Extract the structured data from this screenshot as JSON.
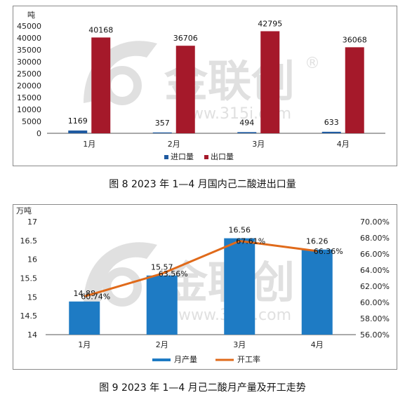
{
  "watermark": {
    "brand": "金联创",
    "url": "www.315i.com",
    "registered": "®",
    "color": "#c8c8c8"
  },
  "colors": {
    "import": "#1f5aa0",
    "export": "#a5192a",
    "production": "#1e7bc4",
    "utilization": "#e06a1a",
    "axis": "#555555"
  },
  "chart_data": [
    {
      "type": "bar",
      "unit_label": "吨",
      "categories": [
        "1月",
        "2月",
        "3月",
        "4月"
      ],
      "series": [
        {
          "name": "进口量",
          "values": [
            1169,
            357,
            494,
            633
          ]
        },
        {
          "name": "出口量",
          "values": [
            40168,
            36706,
            42795,
            36068
          ]
        }
      ],
      "ylim": [
        0,
        45000
      ],
      "yticks": [
        0,
        5000,
        10000,
        15000,
        20000,
        25000,
        30000,
        35000,
        40000,
        45000
      ],
      "legend": "bottom",
      "grid": false,
      "caption": "图 8  2023 年 1—4 月国内己二酸进出口量"
    },
    {
      "type": "bar+line",
      "unit_label": "万吨",
      "categories": [
        "1月",
        "2月",
        "3月",
        "4月"
      ],
      "bar_series": {
        "name": "月产量",
        "values": [
          14.88,
          15.57,
          16.56,
          16.26
        ]
      },
      "line_series": {
        "name": "开工率",
        "values": [
          60.74,
          63.56,
          67.61,
          66.36
        ],
        "labels": [
          "60.74%",
          "63.56%",
          "67.61%",
          "66.36%"
        ]
      },
      "ylim": [
        14,
        17
      ],
      "yticks": [
        "14",
        "14.5",
        "15",
        "15.5",
        "16",
        "16.5",
        "17"
      ],
      "y2lim": [
        56,
        70
      ],
      "y2ticks": [
        "56.00%",
        "58.00%",
        "60.00%",
        "62.00%",
        "64.00%",
        "66.00%",
        "68.00%",
        "70.00%"
      ],
      "legend": "bottom",
      "grid": false,
      "caption": "图 9  2023 年 1—4 月己二酸月产量及开工走势"
    }
  ]
}
